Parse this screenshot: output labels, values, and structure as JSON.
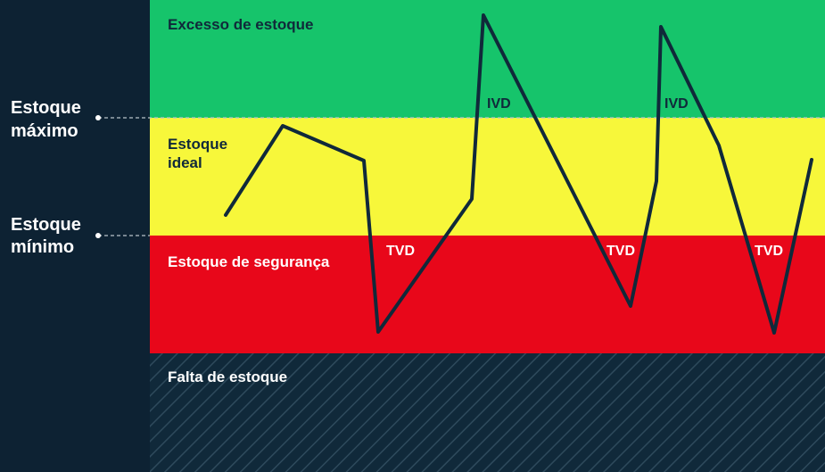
{
  "zones": {
    "excess": {
      "label": "Excesso de estoque",
      "color": "#16c46b"
    },
    "ideal": {
      "label_line1": "Estoque",
      "label_line2": "ideal",
      "color": "#f7f73a"
    },
    "safety": {
      "label": "Estoque de segurança",
      "color": "#e8071a"
    },
    "shortage": {
      "label": "Falta de estoque",
      "color": "#10293a"
    }
  },
  "levels": {
    "max": {
      "line1": "Estoque",
      "line2": "máximo"
    },
    "min": {
      "line1": "Estoque",
      "line2": "mínimo"
    }
  },
  "markers": {
    "ivd": "IVD",
    "tvd": "TVD"
  },
  "colors": {
    "sidebar": "#0d2233",
    "line": "#10293a",
    "dashed_guide": "#b8c2c9"
  }
}
